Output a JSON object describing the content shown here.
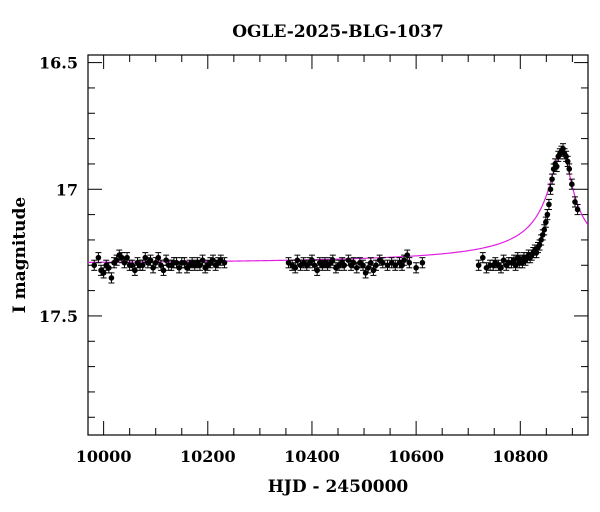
{
  "chart_data": {
    "type": "scatter",
    "title": "OGLE-2025-BLG-1037",
    "xlabel": "HJD - 2450000",
    "ylabel": "I magnitude",
    "xlim": [
      9970,
      10930
    ],
    "ylim": [
      17.97,
      16.47
    ],
    "y_inverted": true,
    "xticks": [
      10000,
      10200,
      10400,
      10600,
      10800
    ],
    "xtick_labels": [
      "10000",
      "10200",
      "10400",
      "10600",
      "10800"
    ],
    "yticks": [
      16.5,
      17,
      17.5
    ],
    "ytick_labels": [
      "16.5",
      "17",
      "17.5"
    ],
    "grid": false,
    "series": [
      {
        "kind": "points_with_errorbars",
        "color": "#000000",
        "error": 0.02,
        "points": [
          [
            9982,
            17.3
          ],
          [
            9990,
            17.27
          ],
          [
            9995,
            17.32
          ],
          [
            10000,
            17.33
          ],
          [
            10005,
            17.3
          ],
          [
            10010,
            17.31
          ],
          [
            10015,
            17.35
          ],
          [
            10020,
            17.29
          ],
          [
            10025,
            17.28
          ],
          [
            10030,
            17.26
          ],
          [
            10035,
            17.27
          ],
          [
            10040,
            17.29
          ],
          [
            10045,
            17.27
          ],
          [
            10050,
            17.3
          ],
          [
            10055,
            17.3
          ],
          [
            10060,
            17.32
          ],
          [
            10065,
            17.29
          ],
          [
            10070,
            17.3
          ],
          [
            10075,
            17.3
          ],
          [
            10080,
            17.27
          ],
          [
            10085,
            17.29
          ],
          [
            10090,
            17.28
          ],
          [
            10095,
            17.31
          ],
          [
            10100,
            17.29
          ],
          [
            10105,
            17.27
          ],
          [
            10110,
            17.3
          ],
          [
            10115,
            17.32
          ],
          [
            10120,
            17.28
          ],
          [
            10125,
            17.3
          ],
          [
            10130,
            17.3
          ],
          [
            10135,
            17.29
          ],
          [
            10140,
            17.29
          ],
          [
            10145,
            17.31
          ],
          [
            10150,
            17.29
          ],
          [
            10155,
            17.29
          ],
          [
            10160,
            17.31
          ],
          [
            10165,
            17.3
          ],
          [
            10170,
            17.29
          ],
          [
            10175,
            17.3
          ],
          [
            10180,
            17.29
          ],
          [
            10185,
            17.3
          ],
          [
            10190,
            17.28
          ],
          [
            10195,
            17.31
          ],
          [
            10200,
            17.3
          ],
          [
            10205,
            17.29
          ],
          [
            10210,
            17.28
          ],
          [
            10215,
            17.3
          ],
          [
            10220,
            17.29
          ],
          [
            10225,
            17.28
          ],
          [
            10232,
            17.29
          ],
          [
            10355,
            17.29
          ],
          [
            10362,
            17.3
          ],
          [
            10368,
            17.31
          ],
          [
            10372,
            17.28
          ],
          [
            10378,
            17.3
          ],
          [
            10384,
            17.29
          ],
          [
            10390,
            17.3
          ],
          [
            10396,
            17.29
          ],
          [
            10400,
            17.28
          ],
          [
            10405,
            17.3
          ],
          [
            10410,
            17.32
          ],
          [
            10415,
            17.29
          ],
          [
            10420,
            17.3
          ],
          [
            10425,
            17.29
          ],
          [
            10430,
            17.3
          ],
          [
            10436,
            17.29
          ],
          [
            10440,
            17.28
          ],
          [
            10446,
            17.31
          ],
          [
            10452,
            17.3
          ],
          [
            10458,
            17.29
          ],
          [
            10462,
            17.3
          ],
          [
            10470,
            17.28
          ],
          [
            10475,
            17.3
          ],
          [
            10480,
            17.29
          ],
          [
            10486,
            17.31
          ],
          [
            10492,
            17.29
          ],
          [
            10498,
            17.3
          ],
          [
            10503,
            17.33
          ],
          [
            10508,
            17.31
          ],
          [
            10513,
            17.29
          ],
          [
            10518,
            17.32
          ],
          [
            10523,
            17.3
          ],
          [
            10530,
            17.28
          ],
          [
            10536,
            17.29
          ],
          [
            10545,
            17.3
          ],
          [
            10553,
            17.29
          ],
          [
            10560,
            17.3
          ],
          [
            10568,
            17.29
          ],
          [
            10573,
            17.3
          ],
          [
            10577,
            17.28
          ],
          [
            10583,
            17.26
          ],
          [
            10587,
            17.29
          ],
          [
            10600,
            17.31
          ],
          [
            10612,
            17.29
          ],
          [
            10720,
            17.3
          ],
          [
            10728,
            17.27
          ],
          [
            10735,
            17.31
          ],
          [
            10742,
            17.3
          ],
          [
            10748,
            17.3
          ],
          [
            10752,
            17.29
          ],
          [
            10758,
            17.3
          ],
          [
            10763,
            17.31
          ],
          [
            10768,
            17.28
          ],
          [
            10773,
            17.3
          ],
          [
            10778,
            17.29
          ],
          [
            10783,
            17.29
          ],
          [
            10788,
            17.28
          ],
          [
            10791,
            17.3
          ],
          [
            10795,
            17.27
          ],
          [
            10798,
            17.29
          ],
          [
            10801,
            17.28
          ],
          [
            10804,
            17.29
          ],
          [
            10807,
            17.27
          ],
          [
            10810,
            17.28
          ],
          [
            10813,
            17.27
          ],
          [
            10816,
            17.26
          ],
          [
            10819,
            17.27
          ],
          [
            10822,
            17.26
          ],
          [
            10825,
            17.25
          ],
          [
            10828,
            17.24
          ],
          [
            10831,
            17.25
          ],
          [
            10834,
            17.23
          ],
          [
            10837,
            17.22
          ],
          [
            10840,
            17.2
          ],
          [
            10843,
            17.18
          ],
          [
            10846,
            17.16
          ],
          [
            10849,
            17.13
          ],
          [
            10852,
            17.1
          ],
          [
            10855,
            17.06
          ],
          [
            10858,
            17.0
          ],
          [
            10861,
            16.96
          ],
          [
            10864,
            16.92
          ],
          [
            10867,
            16.9
          ],
          [
            10870,
            16.91
          ],
          [
            10873,
            16.87
          ],
          [
            10876,
            16.86
          ],
          [
            10879,
            16.85
          ],
          [
            10882,
            16.84
          ],
          [
            10885,
            16.86
          ],
          [
            10888,
            16.87
          ],
          [
            10891,
            16.89
          ],
          [
            10894,
            16.92
          ],
          [
            10899,
            16.98
          ],
          [
            10905,
            17.05
          ],
          [
            10910,
            17.08
          ]
        ]
      },
      {
        "kind": "model_curve",
        "color": "#e020e0",
        "baseline": 17.3,
        "peak_x": 10880,
        "peak_y": 16.85,
        "rise_tau": 22,
        "fall_tau": 18,
        "x_start": 9970,
        "x_end": 10930
      }
    ]
  }
}
